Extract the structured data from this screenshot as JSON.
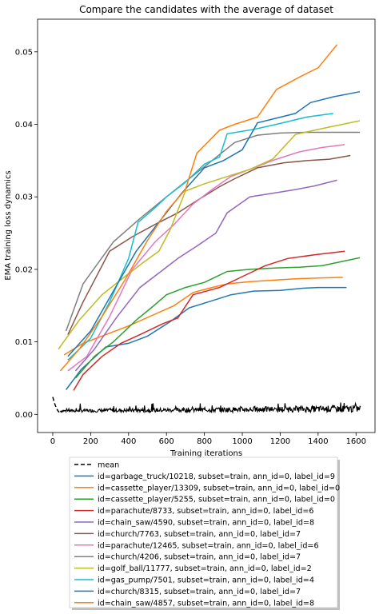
{
  "chart_data": {
    "type": "line",
    "title": "Compare the candidates with the average of dataset",
    "xlabel": "Training iterations",
    "ylabel": "EMA training loss dynamics",
    "xlim": [
      -80,
      1700
    ],
    "ylim": [
      -0.0025,
      0.0545
    ],
    "xticks": [
      0,
      200,
      400,
      600,
      800,
      1000,
      1200,
      1400,
      1600
    ],
    "yticks": [
      0.0,
      0.01,
      0.02,
      0.03,
      0.04,
      0.05
    ],
    "ytick_labels": [
      "0.00",
      "0.01",
      "0.02",
      "0.03",
      "0.04",
      "0.05"
    ],
    "grid": false,
    "legend_position": "below plot",
    "series": [
      {
        "name": "mean",
        "color": "#000000",
        "dashed": true,
        "x": [
          0,
          10,
          20,
          30,
          40
        ],
        "y": [
          0.0024,
          0.0015,
          0.0008,
          0.0004,
          0.0002
        ]
      },
      {
        "name": "id=garbage_truck/10218, subset=train, ann_id=0, label_id=9",
        "color": "#1f77b4",
        "x": [
          70,
          150,
          280,
          400,
          500,
          620,
          720,
          820,
          940,
          1060,
          1200,
          1320,
          1400,
          1550
        ],
        "y": [
          0.0034,
          0.0062,
          0.0093,
          0.0098,
          0.0108,
          0.0128,
          0.0147,
          0.0155,
          0.0165,
          0.017,
          0.0171,
          0.0174,
          0.0175,
          0.0175
        ]
      },
      {
        "name": "id=cassette_player/13309, subset=train, ann_id=0, label_id=0",
        "color": "#ff7f0e",
        "x": [
          60,
          160,
          280,
          400,
          520,
          640,
          740,
          840,
          920,
          1040,
          1160,
          1280,
          1400,
          1530
        ],
        "y": [
          0.0082,
          0.0098,
          0.011,
          0.0122,
          0.0136,
          0.015,
          0.0168,
          0.0175,
          0.018,
          0.0183,
          0.0185,
          0.0187,
          0.0188,
          0.0189
        ]
      },
      {
        "name": "id=cassette_player/5255, subset=train, ann_id=0, label_id=0",
        "color": "#2ca02c",
        "x": [
          120,
          220,
          320,
          440,
          520,
          600,
          700,
          800,
          920,
          1040,
          1180,
          1300,
          1420,
          1620
        ],
        "y": [
          0.005,
          0.008,
          0.01,
          0.013,
          0.0147,
          0.0165,
          0.0175,
          0.0182,
          0.0197,
          0.02,
          0.0202,
          0.0203,
          0.0205,
          0.0216
        ]
      },
      {
        "name": "id=parachute/8733, subset=train, ann_id=0, label_id=6",
        "color": "#d62728",
        "x": [
          110,
          160,
          260,
          360,
          460,
          580,
          660,
          740,
          880,
          1000,
          1120,
          1240,
          1380,
          1540
        ],
        "y": [
          0.0033,
          0.0055,
          0.008,
          0.0098,
          0.011,
          0.0125,
          0.0133,
          0.0165,
          0.0175,
          0.019,
          0.0205,
          0.0215,
          0.022,
          0.0225
        ]
      },
      {
        "name": "id=chain_saw/4590, subset=train, ann_id=0, label_id=8",
        "color": "#9467bd",
        "x": [
          120,
          220,
          340,
          460,
          560,
          660,
          760,
          860,
          920,
          1040,
          1160,
          1280,
          1380,
          1500
        ],
        "y": [
          0.006,
          0.009,
          0.0135,
          0.0175,
          0.0195,
          0.0215,
          0.0232,
          0.025,
          0.0278,
          0.03,
          0.0305,
          0.031,
          0.0315,
          0.0323
        ]
      },
      {
        "name": "id=church/7763, subset=train, ann_id=0, label_id=7",
        "color": "#8c564b",
        "x": [
          80,
          160,
          300,
          420,
          540,
          660,
          780,
          880,
          960,
          1080,
          1220,
          1340,
          1460,
          1570
        ],
        "y": [
          0.011,
          0.0155,
          0.0225,
          0.0245,
          0.0262,
          0.0278,
          0.0298,
          0.0314,
          0.0325,
          0.034,
          0.0347,
          0.035,
          0.0352,
          0.0357
        ]
      },
      {
        "name": "id=parachute/12465, subset=train, ann_id=0, label_id=6",
        "color": "#e377c2",
        "x": [
          80,
          180,
          300,
          420,
          540,
          640,
          740,
          840,
          940,
          1060,
          1180,
          1300,
          1420,
          1540
        ],
        "y": [
          0.006,
          0.008,
          0.0135,
          0.02,
          0.0238,
          0.0262,
          0.029,
          0.031,
          0.0328,
          0.034,
          0.0352,
          0.0362,
          0.0368,
          0.0372
        ]
      },
      {
        "name": "id=church/4206, subset=train, ann_id=0, label_id=7",
        "color": "#7f7f7f",
        "x": [
          70,
          160,
          320,
          460,
          600,
          720,
          840,
          960,
          1080,
          1200,
          1340,
          1460,
          1620
        ],
        "y": [
          0.0115,
          0.018,
          0.0238,
          0.027,
          0.03,
          0.0325,
          0.035,
          0.0375,
          0.0385,
          0.0388,
          0.0389,
          0.0389,
          0.0389
        ]
      },
      {
        "name": "id=golf_ball/11777, subset=train, ann_id=0, label_id=2",
        "color": "#bcbd22",
        "x": [
          30,
          140,
          260,
          380,
          480,
          560,
          620,
          700,
          800,
          920,
          1040,
          1160,
          1280,
          1400,
          1620
        ],
        "y": [
          0.009,
          0.013,
          0.0165,
          0.019,
          0.021,
          0.0225,
          0.0255,
          0.0308,
          0.0318,
          0.0328,
          0.0338,
          0.0352,
          0.0386,
          0.0393,
          0.0405
        ]
      },
      {
        "name": "id=gas_pump/7501, subset=train, ann_id=0, label_id=4",
        "color": "#17becf",
        "x": [
          80,
          200,
          300,
          400,
          450,
          540,
          600,
          700,
          800,
          880,
          920,
          1060,
          1180,
          1340,
          1480
        ],
        "y": [
          0.0075,
          0.0105,
          0.0155,
          0.0215,
          0.0265,
          0.0285,
          0.03,
          0.032,
          0.0345,
          0.0355,
          0.0387,
          0.0393,
          0.04,
          0.041,
          0.0415
        ]
      },
      {
        "name": "id=church/8315, subset=train, ann_id=0, label_id=7",
        "color": "#1f77b4",
        "x": [
          80,
          200,
          320,
          440,
          560,
          680,
          800,
          900,
          1000,
          1080,
          1280,
          1360,
          1480,
          1620
        ],
        "y": [
          0.008,
          0.0115,
          0.017,
          0.0225,
          0.0265,
          0.0305,
          0.034,
          0.035,
          0.0365,
          0.0402,
          0.0415,
          0.043,
          0.0438,
          0.0445
        ]
      },
      {
        "name": "id=chain_saw/4857, subset=train, ann_id=0, label_id=8",
        "color": "#ff7f0e",
        "x": [
          40,
          140,
          260,
          380,
          500,
          600,
          700,
          760,
          880,
          960,
          1080,
          1180,
          1300,
          1400,
          1500
        ],
        "y": [
          0.006,
          0.009,
          0.0135,
          0.0185,
          0.024,
          0.028,
          0.031,
          0.036,
          0.0392,
          0.04,
          0.041,
          0.0448,
          0.0465,
          0.0478,
          0.051
        ]
      }
    ]
  }
}
